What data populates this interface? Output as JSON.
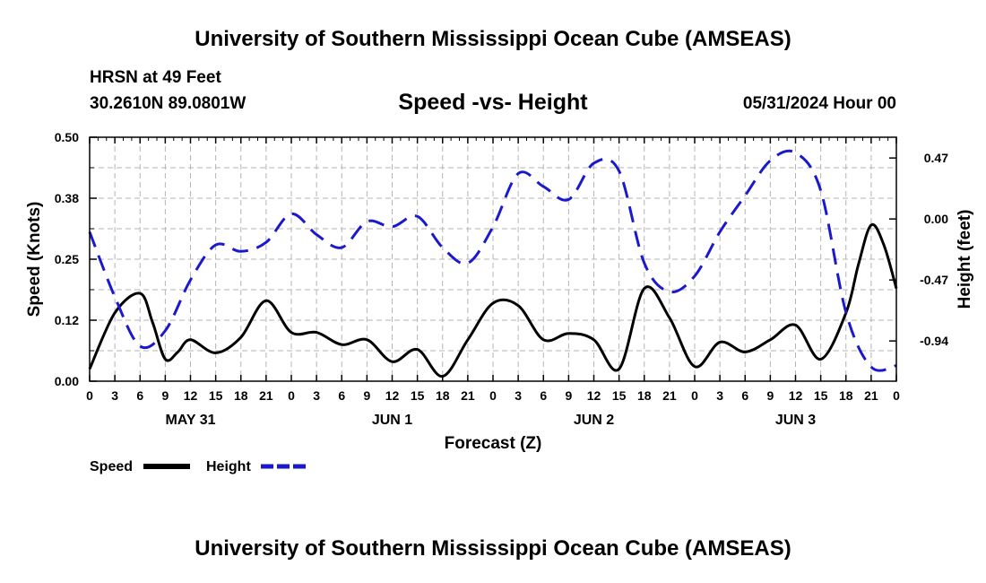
{
  "header": {
    "title": "University of Southern Mississippi Ocean Cube (AMSEAS)",
    "station": "HRSN at 49 Feet",
    "coords": "30.2610N  89.0801W",
    "subtitle": "Speed -vs- Height",
    "date": "05/31/2024 Hour 00"
  },
  "footer": {
    "title": "University of Southern Mississippi Ocean Cube (AMSEAS)"
  },
  "legend": {
    "speed_label": "Speed",
    "height_label": "Height"
  },
  "colors": {
    "speed": "#000000",
    "height": "#1a1acc",
    "grid": "#b4b4b4"
  },
  "chart_data": {
    "type": "line",
    "xlabel": "Forecast (Z)",
    "ylabel_left": "Speed (Knots)",
    "ylabel_right": "Height (feet)",
    "x_ticks": [
      "0",
      "3",
      "6",
      "9",
      "12",
      "15",
      "18",
      "21",
      "0",
      "3",
      "6",
      "9",
      "12",
      "15",
      "18",
      "21",
      "0",
      "3",
      "6",
      "9",
      "12",
      "15",
      "18",
      "21",
      "0",
      "3",
      "6",
      "9",
      "12",
      "15",
      "18",
      "21",
      "0"
    ],
    "day_labels": [
      {
        "label": "MAY 31",
        "hour": 12
      },
      {
        "label": "JUN 1",
        "hour": 36
      },
      {
        "label": "JUN 2",
        "hour": 60
      },
      {
        "label": "JUN 3",
        "hour": 84
      }
    ],
    "xlim": [
      0,
      96
    ],
    "ylim_left": [
      0,
      0.5
    ],
    "yticks_left": [
      "0.00",
      "0.12",
      "0.25",
      "0.38",
      "0.50"
    ],
    "yticks_left_values": [
      0,
      0.125,
      0.25,
      0.375,
      0.5
    ],
    "ylim_right": [
      -1.25,
      0.63
    ],
    "yticks_right": [
      "-0.94",
      "-0.47",
      "0.00",
      "0.47"
    ],
    "yticks_right_values": [
      -0.94,
      -0.47,
      0.0,
      0.47
    ],
    "series": [
      {
        "name": "Speed",
        "axis": "left",
        "hours": [
          0,
          3,
          6,
          7.5,
          9,
          10.5,
          12,
          15,
          18,
          21,
          24,
          27,
          30,
          33,
          36,
          39,
          42,
          45,
          48,
          51,
          54,
          57,
          60,
          63,
          66,
          69,
          72,
          75,
          78,
          81,
          84,
          87,
          90,
          91.5,
          93,
          94.5,
          96
        ],
        "values": [
          0.025,
          0.14,
          0.18,
          0.12,
          0.045,
          0.06,
          0.085,
          0.058,
          0.09,
          0.165,
          0.1,
          0.1,
          0.075,
          0.085,
          0.04,
          0.065,
          0.01,
          0.085,
          0.16,
          0.155,
          0.085,
          0.098,
          0.085,
          0.025,
          0.19,
          0.13,
          0.03,
          0.08,
          0.06,
          0.085,
          0.115,
          0.045,
          0.14,
          0.24,
          0.32,
          0.28,
          0.19
        ]
      },
      {
        "name": "Height",
        "axis": "right",
        "hours": [
          0,
          3,
          6,
          9,
          12,
          15,
          18,
          21,
          24,
          27,
          30,
          33,
          36,
          39,
          42,
          45,
          48,
          51,
          54,
          57,
          60,
          63,
          66,
          69,
          72,
          75,
          78,
          81,
          84,
          87,
          90,
          93,
          96
        ],
        "values": [
          -0.1,
          -0.6,
          -0.98,
          -0.86,
          -0.47,
          -0.2,
          -0.25,
          -0.18,
          0.04,
          -0.12,
          -0.22,
          -0.02,
          -0.06,
          0.02,
          -0.22,
          -0.34,
          -0.06,
          0.35,
          0.25,
          0.15,
          0.43,
          0.37,
          -0.34,
          -0.56,
          -0.44,
          -0.1,
          0.18,
          0.45,
          0.51,
          0.22,
          -0.72,
          -1.14,
          -1.13
        ]
      }
    ]
  }
}
